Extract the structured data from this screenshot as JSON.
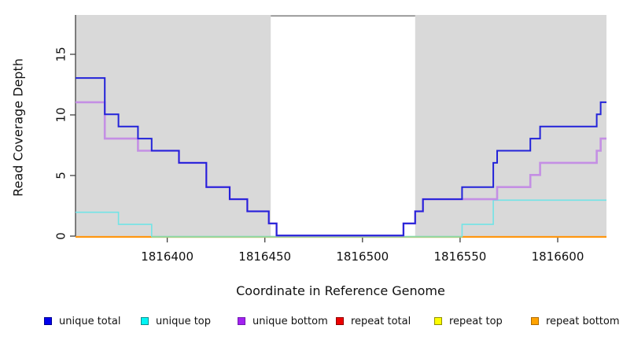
{
  "figure": {
    "x_axis_title": "Coordinate in Reference Genome",
    "y_axis_title": "Read Coverage Depth"
  },
  "chart_data": {
    "type": "line",
    "subtype": "step",
    "title": "",
    "xlabel": "Coordinate in Reference Genome",
    "ylabel": "Read Coverage Depth",
    "xlim": [
      1816353,
      1816625
    ],
    "ylim": [
      0,
      18.25
    ],
    "x_ticks": [
      1816400,
      1816450,
      1816500,
      1816550,
      1816600
    ],
    "y_ticks": [
      0,
      5,
      10,
      15
    ],
    "grid": false,
    "legend_position": "bottom",
    "shaded_regions": [
      {
        "x0": 1816353,
        "x1": 1816453,
        "color": "#d9d9d9"
      },
      {
        "x0": 1816527,
        "x1": 1816625,
        "color": "#d9d9d9"
      }
    ],
    "gap_span": {
      "x0": 1816453,
      "x1": 1816527,
      "color": "#898989"
    },
    "zero_overlap_color": "#92d89e",
    "series": [
      {
        "name": "unique total",
        "color": "#2323d9",
        "line_width": 2,
        "steps": [
          [
            1816353,
            13
          ],
          [
            1816368,
            10
          ],
          [
            1816375,
            9
          ],
          [
            1816385,
            8
          ],
          [
            1816392,
            7
          ],
          [
            1816406,
            6
          ],
          [
            1816420,
            4
          ],
          [
            1816432,
            3
          ],
          [
            1816441,
            2
          ],
          [
            1816452,
            1
          ],
          [
            1816456,
            0
          ],
          [
            1816521,
            1
          ],
          [
            1816527,
            2
          ],
          [
            1816531,
            3
          ],
          [
            1816551,
            4
          ],
          [
            1816567,
            6
          ],
          [
            1816569,
            7
          ],
          [
            1816586,
            8
          ],
          [
            1816591,
            9
          ],
          [
            1816620,
            10
          ],
          [
            1816622,
            11
          ]
        ]
      },
      {
        "name": "unique top",
        "color": "#72e4e6",
        "line_width": 1.6,
        "steps": [
          [
            1816353,
            2
          ],
          [
            1816375,
            1
          ],
          [
            1816392,
            0
          ],
          [
            1816551,
            1
          ],
          [
            1816567,
            3
          ]
        ]
      },
      {
        "name": "unique bottom",
        "color": "#c48fe4",
        "line_width": 2.6,
        "steps": [
          [
            1816353,
            11
          ],
          [
            1816368,
            8
          ],
          [
            1816385,
            7
          ],
          [
            1816406,
            6
          ],
          [
            1816420,
            4
          ],
          [
            1816432,
            3
          ],
          [
            1816441,
            2
          ],
          [
            1816452,
            1
          ],
          [
            1816456,
            0
          ],
          [
            1816521,
            1
          ],
          [
            1816527,
            2
          ],
          [
            1816531,
            3
          ],
          [
            1816569,
            4
          ],
          [
            1816586,
            5
          ],
          [
            1816591,
            6
          ],
          [
            1816620,
            7
          ],
          [
            1816622,
            8
          ]
        ]
      },
      {
        "name": "repeat total",
        "color": "#d40000",
        "line_width": 1.5,
        "steps": [
          [
            1816353,
            0
          ]
        ]
      },
      {
        "name": "repeat top",
        "color": "#e8e800",
        "line_width": 1.5,
        "steps": [
          [
            1816353,
            0
          ]
        ]
      },
      {
        "name": "repeat bottom",
        "color": "#ff9711",
        "line_width": 2.2,
        "steps": [
          [
            1816353,
            0
          ]
        ]
      }
    ]
  },
  "legend": {
    "items": [
      {
        "label": "unique total",
        "fill": "#0000ed",
        "border": "#000090"
      },
      {
        "label": "unique top",
        "fill": "#00f5f5",
        "border": "#0a8f8f"
      },
      {
        "label": "unique bottom",
        "fill": "#a321f0",
        "border": "#701bb0"
      },
      {
        "label": "repeat total",
        "fill": "#ed0000",
        "border": "#900000"
      },
      {
        "label": "repeat top",
        "fill": "#fdfd00",
        "border": "#8f8f00"
      },
      {
        "label": "repeat bottom",
        "fill": "#ffa300",
        "border": "#b06a00"
      }
    ]
  }
}
